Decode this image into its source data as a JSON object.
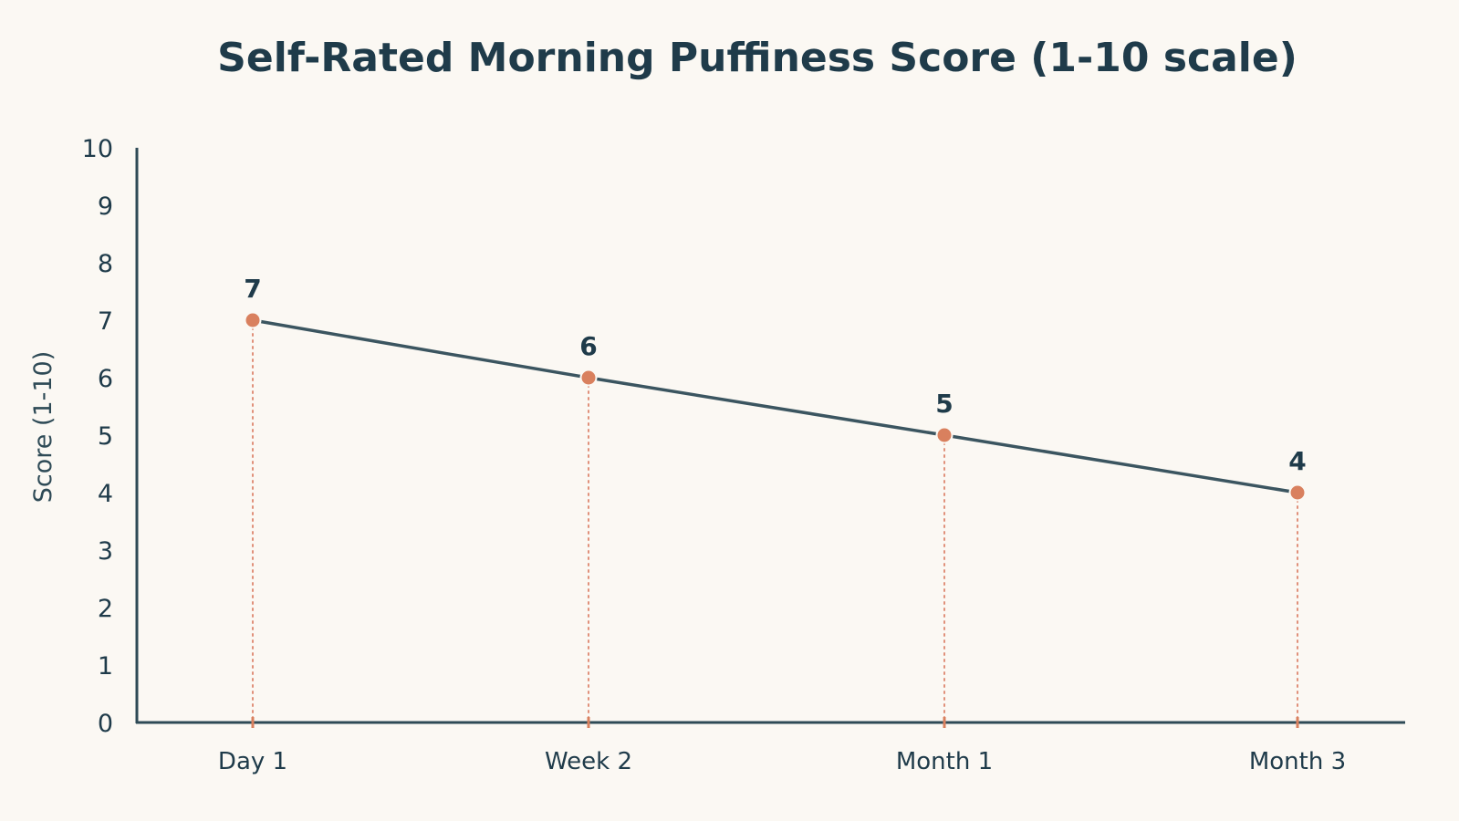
{
  "colors": {
    "background": "#fbf8f3",
    "text": "#1f3b4a",
    "axis": "#2e4a56",
    "line": "#3b5560",
    "point": "#d9805e",
    "guide": "#e0907a"
  },
  "chart_data": {
    "type": "line",
    "title": "Self-Rated Morning Puffiness Score (1-10 scale)",
    "xlabel": "",
    "ylabel": "Score (1-10)",
    "categories": [
      "Day 1",
      "Week 2",
      "Month 1",
      "Month 3"
    ],
    "series": [
      {
        "values": [
          7,
          6,
          5,
          4
        ],
        "data_labels": [
          "7",
          "6",
          "5",
          "4"
        ]
      }
    ],
    "ylim": [
      0,
      10
    ],
    "yticks": [
      "0",
      "1",
      "2",
      "3",
      "4",
      "5",
      "6",
      "7",
      "8",
      "9",
      "10"
    ],
    "grid": false,
    "legend": "none",
    "guides": "dotted vertical lines from each point to x-axis"
  }
}
